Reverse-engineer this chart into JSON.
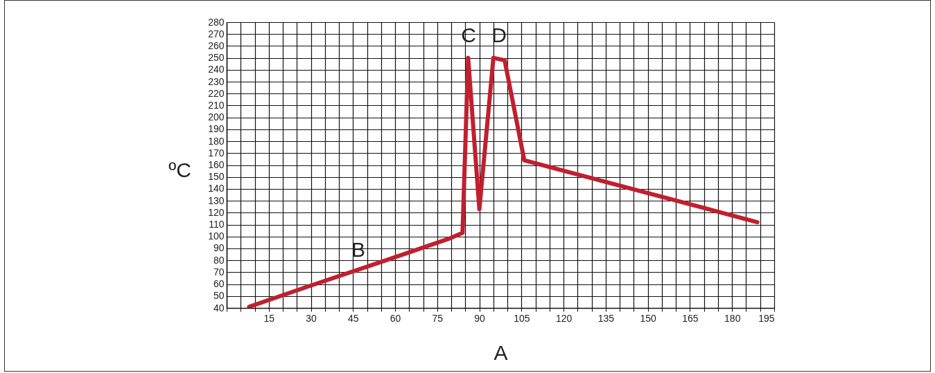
{
  "chart_data": {
    "type": "line",
    "xlabel": "A",
    "ylabel": "ºC",
    "x": [
      8,
      29,
      58,
      79,
      84,
      86,
      90,
      95,
      99,
      106,
      189
    ],
    "series": [
      {
        "color": "#c0202e",
        "values": [
          41,
          58,
          81,
          98,
          103,
          250,
          123,
          250,
          248,
          164,
          112
        ]
      }
    ],
    "xlim": [
      0,
      195
    ],
    "ylim": [
      40,
      280
    ],
    "xticks": [
      {
        "value": 0,
        "label": null
      },
      {
        "value": 5,
        "label": null
      },
      {
        "value": 10,
        "label": null
      },
      15,
      {
        "value": 20,
        "label": null
      },
      {
        "value": 25,
        "label": null
      },
      30,
      {
        "value": 35,
        "label": null
      },
      {
        "value": 40,
        "label": null
      },
      45,
      {
        "value": 50,
        "label": null
      },
      {
        "value": 55,
        "label": null
      },
      60,
      {
        "value": 65,
        "label": null
      },
      {
        "value": 70,
        "label": null
      },
      75,
      {
        "value": 80,
        "label": null
      },
      {
        "value": 85,
        "label": null
      },
      90,
      {
        "value": 95,
        "label": null
      },
      {
        "value": 100,
        "label": null
      },
      105,
      {
        "value": 110,
        "label": null
      },
      {
        "value": 115,
        "label": null
      },
      120,
      {
        "value": 125,
        "label": null
      },
      {
        "value": 130,
        "label": null
      },
      135,
      {
        "value": 140,
        "label": null
      },
      {
        "value": 145,
        "label": null
      },
      150,
      {
        "value": 155,
        "label": null
      },
      {
        "value": 160,
        "label": null
      },
      165,
      {
        "value": 170,
        "label": null
      },
      {
        "value": 175,
        "label": null
      },
      180,
      {
        "value": 185,
        "label": null
      },
      {
        "value": 190,
        "label": null
      },
      195
    ],
    "yticks": [
      40,
      50,
      60,
      70,
      80,
      90,
      100,
      110,
      120,
      130,
      140,
      150,
      160,
      170,
      180,
      190,
      200,
      210,
      220,
      230,
      240,
      250,
      260,
      270,
      280
    ],
    "grid": true,
    "marker": "none",
    "line_style": "solid",
    "annotations": [
      "B",
      "C",
      "D"
    ]
  }
}
